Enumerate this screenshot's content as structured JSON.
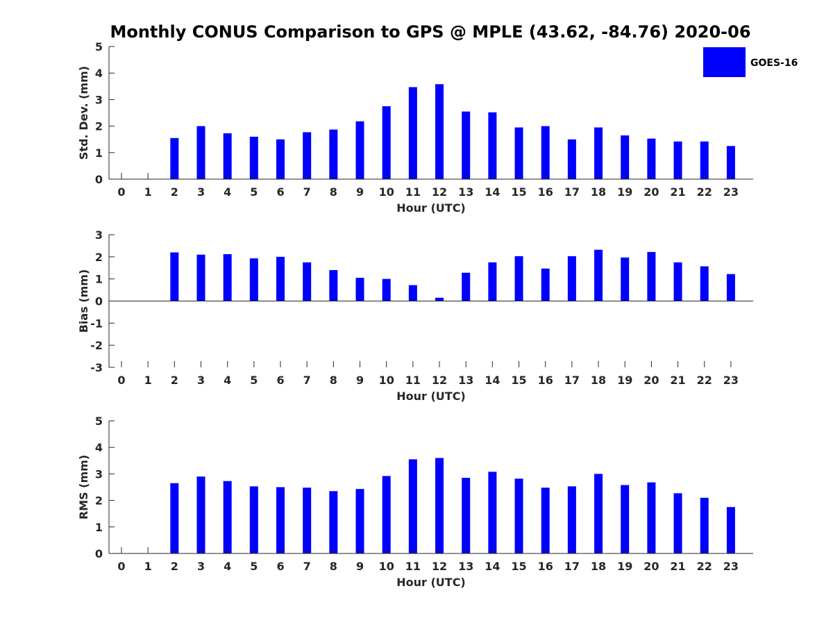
{
  "chart_data": {
    "type": "bar",
    "title": "Monthly CONUS Comparison to GPS @ MPLE (43.62, -84.76) 2020-06",
    "legend": {
      "entries": [
        "GOES-16"
      ],
      "placement": "top-right"
    },
    "bar_color": "#0000ff",
    "categories": [
      "0",
      "1",
      "2",
      "3",
      "4",
      "5",
      "6",
      "7",
      "8",
      "9",
      "10",
      "11",
      "12",
      "13",
      "14",
      "15",
      "16",
      "17",
      "18",
      "19",
      "20",
      "21",
      "22",
      "23"
    ],
    "panels": [
      {
        "ylabel": "Std. Dev. (mm)",
        "xlabel": "Hour (UTC)",
        "ylim": [
          0,
          5
        ],
        "yticks": [
          "0",
          "1",
          "2",
          "3",
          "4",
          "5"
        ],
        "values": [
          null,
          null,
          1.55,
          2.0,
          1.73,
          1.6,
          1.5,
          1.77,
          1.87,
          2.18,
          2.75,
          3.47,
          3.58,
          2.55,
          2.52,
          1.95,
          2.0,
          1.5,
          1.95,
          1.65,
          1.53,
          1.42,
          1.42,
          1.25
        ]
      },
      {
        "ylabel": "Bias (mm)",
        "xlabel": "Hour (UTC)",
        "ylim": [
          -3,
          3
        ],
        "yticks": [
          "-3",
          "-2",
          "-1",
          "0",
          "1",
          "2",
          "3"
        ],
        "values": [
          null,
          null,
          2.2,
          2.1,
          2.12,
          1.93,
          2.0,
          1.75,
          1.4,
          1.05,
          1.0,
          0.72,
          0.15,
          1.28,
          1.75,
          2.03,
          1.47,
          2.03,
          2.32,
          1.97,
          2.22,
          1.75,
          1.57,
          1.22
        ]
      },
      {
        "ylabel": "RMS (mm)",
        "xlabel": "Hour (UTC)",
        "ylim": [
          0,
          5
        ],
        "yticks": [
          "0",
          "1",
          "2",
          "3",
          "4",
          "5"
        ],
        "values": [
          null,
          null,
          2.65,
          2.9,
          2.73,
          2.53,
          2.5,
          2.48,
          2.35,
          2.43,
          2.92,
          3.55,
          3.6,
          2.85,
          3.08,
          2.82,
          2.48,
          2.53,
          3.0,
          2.58,
          2.68,
          2.27,
          2.1,
          1.75
        ]
      }
    ]
  }
}
